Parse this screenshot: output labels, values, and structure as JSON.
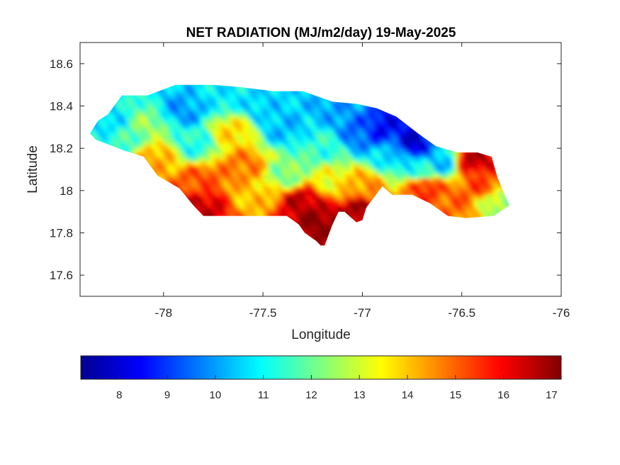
{
  "chart_data": {
    "type": "heatmap",
    "title": "NET RADIATION (MJ/m2/day) 19-May-2025",
    "xlabel": "Longitude",
    "ylabel": "Latitude",
    "xlim": [
      -78.42,
      -76.0
    ],
    "ylim": [
      17.5,
      18.7
    ],
    "xticks": [
      -78,
      -77.5,
      -77,
      -76.5,
      -76
    ],
    "xtick_labels": [
      "-78",
      "-77.5",
      "-77",
      "-76.5",
      "-76"
    ],
    "yticks": [
      17.6,
      17.8,
      18.0,
      18.2,
      18.4,
      18.6
    ],
    "ytick_labels": [
      "17.6",
      "17.8",
      "18",
      "18.2",
      "18.4",
      "18.6"
    ],
    "colormap": "jet",
    "colorbar": {
      "placement": "bottom",
      "range": [
        7.2,
        17.2
      ],
      "ticks": [
        8,
        9,
        10,
        11,
        12,
        13,
        14,
        15,
        16,
        17
      ],
      "tick_labels": [
        "8",
        "9",
        "10",
        "11",
        "12",
        "13",
        "14",
        "15",
        "16",
        "17"
      ]
    },
    "land_outline": [
      [
        -78.37,
        18.27
      ],
      [
        -78.33,
        18.33
      ],
      [
        -78.28,
        18.36
      ],
      [
        -78.21,
        18.45
      ],
      [
        -78.08,
        18.45
      ],
      [
        -77.94,
        18.5
      ],
      [
        -77.75,
        18.5
      ],
      [
        -77.62,
        18.49
      ],
      [
        -77.45,
        18.47
      ],
      [
        -77.3,
        18.47
      ],
      [
        -77.15,
        18.42
      ],
      [
        -77.03,
        18.41
      ],
      [
        -76.93,
        18.39
      ],
      [
        -76.83,
        18.35
      ],
      [
        -76.72,
        18.27
      ],
      [
        -76.63,
        18.21
      ],
      [
        -76.52,
        18.18
      ],
      [
        -76.42,
        18.18
      ],
      [
        -76.35,
        18.16
      ],
      [
        -76.32,
        18.06
      ],
      [
        -76.28,
        17.97
      ],
      [
        -76.26,
        17.93
      ],
      [
        -76.34,
        17.88
      ],
      [
        -76.48,
        17.87
      ],
      [
        -76.57,
        17.88
      ],
      [
        -76.66,
        17.94
      ],
      [
        -76.75,
        17.98
      ],
      [
        -76.85,
        17.98
      ],
      [
        -76.9,
        18.02
      ],
      [
        -76.94,
        17.97
      ],
      [
        -76.98,
        17.92
      ],
      [
        -77.0,
        17.86
      ],
      [
        -77.03,
        17.85
      ],
      [
        -77.09,
        17.9
      ],
      [
        -77.12,
        17.9
      ],
      [
        -77.15,
        17.84
      ],
      [
        -77.17,
        17.79
      ],
      [
        -77.19,
        17.74
      ],
      [
        -77.21,
        17.74
      ],
      [
        -77.23,
        17.76
      ],
      [
        -77.29,
        17.8
      ],
      [
        -77.32,
        17.84
      ],
      [
        -77.38,
        17.88
      ],
      [
        -77.5,
        17.88
      ],
      [
        -77.65,
        17.88
      ],
      [
        -77.8,
        17.88
      ],
      [
        -77.85,
        17.93
      ],
      [
        -77.92,
        18.01
      ],
      [
        -78.03,
        18.07
      ],
      [
        -78.1,
        18.16
      ],
      [
        -78.2,
        18.19
      ],
      [
        -78.34,
        18.24
      ]
    ],
    "value_hotspots": [
      {
        "lon": -77.9,
        "lat": 18.38,
        "value": 10.0
      },
      {
        "lon": -78.28,
        "lat": 18.33,
        "value": 10.6
      },
      {
        "lon": -78.2,
        "lat": 18.25,
        "value": 11.5
      },
      {
        "lon": -78.08,
        "lat": 18.3,
        "value": 12.4
      },
      {
        "lon": -78.03,
        "lat": 18.16,
        "value": 14.3
      },
      {
        "lon": -77.85,
        "lat": 18.22,
        "value": 11.2
      },
      {
        "lon": -77.82,
        "lat": 18.05,
        "value": 15.2
      },
      {
        "lon": -77.8,
        "lat": 17.92,
        "value": 16.5
      },
      {
        "lon": -77.7,
        "lat": 18.45,
        "value": 10.8
      },
      {
        "lon": -77.65,
        "lat": 18.28,
        "value": 13.8
      },
      {
        "lon": -77.6,
        "lat": 18.12,
        "value": 14.8
      },
      {
        "lon": -77.55,
        "lat": 17.98,
        "value": 14.0
      },
      {
        "lon": -77.5,
        "lat": 18.4,
        "value": 10.5
      },
      {
        "lon": -77.4,
        "lat": 18.3,
        "value": 10.3
      },
      {
        "lon": -77.38,
        "lat": 18.08,
        "value": 12.2
      },
      {
        "lon": -77.3,
        "lat": 17.95,
        "value": 16.6
      },
      {
        "lon": -77.23,
        "lat": 17.85,
        "value": 17.1
      },
      {
        "lon": -77.2,
        "lat": 18.2,
        "value": 11.4
      },
      {
        "lon": -77.15,
        "lat": 18.05,
        "value": 13.4
      },
      {
        "lon": -77.1,
        "lat": 18.4,
        "value": 10.0
      },
      {
        "lon": -77.0,
        "lat": 18.28,
        "value": 9.4
      },
      {
        "lon": -77.0,
        "lat": 18.02,
        "value": 14.5
      },
      {
        "lon": -77.02,
        "lat": 17.9,
        "value": 16.9
      },
      {
        "lon": -76.9,
        "lat": 18.3,
        "value": 8.4
      },
      {
        "lon": -76.85,
        "lat": 18.17,
        "value": 10.6
      },
      {
        "lon": -76.75,
        "lat": 18.22,
        "value": 8.0
      },
      {
        "lon": -76.7,
        "lat": 18.1,
        "value": 11.2
      },
      {
        "lon": -76.68,
        "lat": 18.02,
        "value": 15.6
      },
      {
        "lon": -76.6,
        "lat": 18.14,
        "value": 10.3
      },
      {
        "lon": -76.55,
        "lat": 17.95,
        "value": 15.0
      },
      {
        "lon": -76.45,
        "lat": 18.15,
        "value": 16.6
      },
      {
        "lon": -76.4,
        "lat": 18.02,
        "value": 15.3
      },
      {
        "lon": -76.33,
        "lat": 17.95,
        "value": 12.6
      }
    ]
  }
}
